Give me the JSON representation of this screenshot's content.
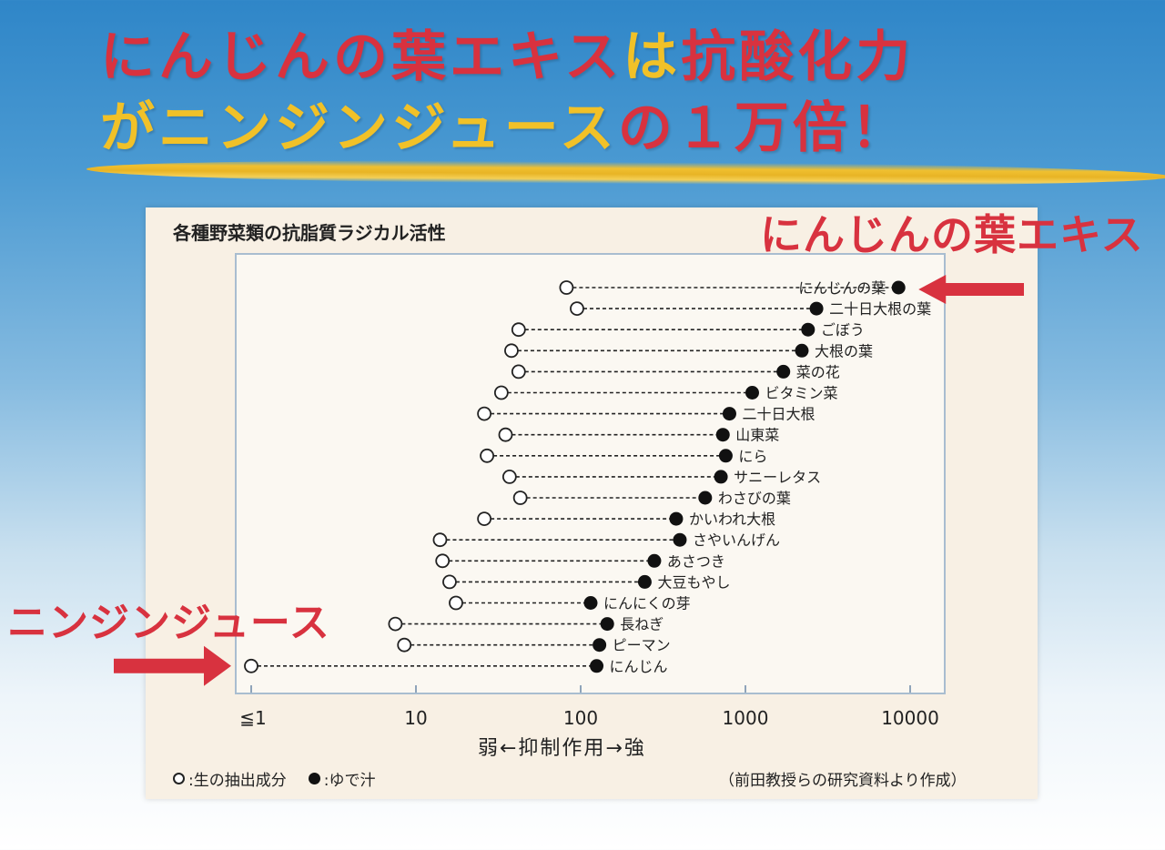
{
  "headline": {
    "line1_red": "にんじんの葉エキス",
    "line1_yellow": "は",
    "line1_red2": "抗酸化力",
    "line2_yellow": "が",
    "line2_yellow_cont": "ニンジンジュース",
    "line2_red": "の１万倍！"
  },
  "callouts": {
    "leaf_extract": "にんじんの葉エキス",
    "carrot_juice": "ニンジンジュース"
  },
  "colors": {
    "headline_red": "#d8323f",
    "headline_yellow": "#f1c128",
    "arrow_red": "#d8323f",
    "marker": "#111111"
  },
  "chart_data": {
    "type": "dumbbell",
    "title": "各種野菜類の抗脂質ラジカル活性",
    "xlabel": "弱←抑制作用→強",
    "xscale": "log",
    "xlim": [
      0.6,
      18000
    ],
    "x_ticks": [
      {
        "value": 1,
        "label": "≦1"
      },
      {
        "value": 10,
        "label": "10"
      },
      {
        "value": 100,
        "label": "100"
      },
      {
        "value": 1000,
        "label": "1000"
      },
      {
        "value": 10000,
        "label": "10000"
      }
    ],
    "legend": {
      "raw": "生の抽出成分",
      "boiled": "ゆで汁",
      "raw_prefix": "○:",
      "boiled_prefix": "●:"
    },
    "source": "（前田教授らの研究資料より作成）",
    "series_names": [
      "生の抽出成分",
      "ゆで汁"
    ],
    "items": [
      {
        "name": "にんじんの葉",
        "raw": 82,
        "boiled": 8500
      },
      {
        "name": "二十日大根の葉",
        "raw": 95,
        "boiled": 2700
      },
      {
        "name": "ごぼう",
        "raw": 42,
        "boiled": 2400
      },
      {
        "name": "大根の葉",
        "raw": 38,
        "boiled": 2200
      },
      {
        "name": "菜の花",
        "raw": 42,
        "boiled": 1700
      },
      {
        "name": "ビタミン菜",
        "raw": 33,
        "boiled": 1100
      },
      {
        "name": "二十日大根",
        "raw": 26,
        "boiled": 800
      },
      {
        "name": "山東菜",
        "raw": 35,
        "boiled": 730
      },
      {
        "name": "にら",
        "raw": 27,
        "boiled": 760
      },
      {
        "name": "サニーレタス",
        "raw": 37,
        "boiled": 710
      },
      {
        "name": "わさびの葉",
        "raw": 43,
        "boiled": 570
      },
      {
        "name": "かいわれ大根",
        "raw": 26,
        "boiled": 380
      },
      {
        "name": "さやいんげん",
        "raw": 14,
        "boiled": 400
      },
      {
        "name": "あさつき",
        "raw": 14.5,
        "boiled": 280
      },
      {
        "name": "大豆もやし",
        "raw": 16,
        "boiled": 245
      },
      {
        "name": "にんにくの芽",
        "raw": 17.5,
        "boiled": 115
      },
      {
        "name": "長ねぎ",
        "raw": 7.5,
        "boiled": 145
      },
      {
        "name": "ピーマン",
        "raw": 8.5,
        "boiled": 130
      },
      {
        "name": "にんじん",
        "raw": 1,
        "boiled": 125
      }
    ]
  }
}
